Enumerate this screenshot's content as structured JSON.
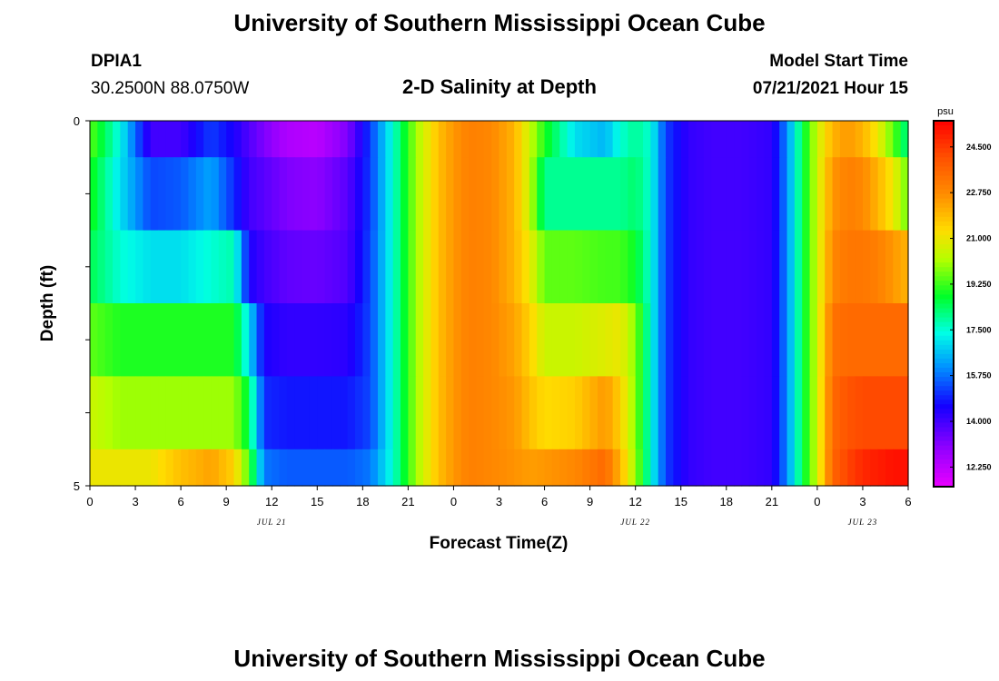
{
  "header": {
    "title": "University of Southern Mississippi Ocean Cube",
    "station_id": "DPIA1",
    "coordinates": "30.2500N  88.0750W",
    "chart_title": "2-D Salinity at Depth",
    "model_start_label": "Model Start Time",
    "model_start_value": "07/21/2021 Hour 15"
  },
  "footer": {
    "title": "University of Southern Mississippi Ocean Cube"
  },
  "chart_data": {
    "type": "heatmap",
    "title": "2-D Salinity at Depth",
    "xlabel": "Forecast Time(Z)",
    "ylabel": "Depth (ft)",
    "y_tick_labels": [
      "0",
      "5"
    ],
    "x_tick_labels": [
      "0",
      "3",
      "6",
      "9",
      "12",
      "15",
      "18",
      "21",
      "0",
      "3",
      "6",
      "9",
      "12",
      "15",
      "18",
      "21",
      "0",
      "3",
      "6"
    ],
    "date_labels": [
      {
        "label": "JUL 21",
        "hour_index": 12
      },
      {
        "label": "JUL 22",
        "hour_index": 36
      },
      {
        "label": "JUL 23",
        "hour_index": 51
      }
    ],
    "colorbar": {
      "unit": "psu",
      "min": 11.5,
      "max": 25.5,
      "tick_labels": [
        "12.250",
        "14.000",
        "15.750",
        "17.500",
        "19.250",
        "21.000",
        "22.750",
        "24.500"
      ]
    },
    "x_hours_range": [
      0,
      54
    ],
    "depth_range": [
      0,
      5
    ],
    "time_keys": [
      0,
      2,
      4,
      6,
      8,
      9.5,
      10.5,
      11.5,
      13,
      15,
      17,
      18.5,
      20,
      21.5,
      23,
      24,
      25,
      26.5,
      28,
      29,
      30,
      32,
      34,
      35,
      36,
      37,
      38,
      39.5,
      41,
      43,
      45,
      46,
      47,
      48,
      49,
      50,
      51,
      52,
      53,
      54
    ],
    "salinity_rows": [
      {
        "depth": "0-0.5",
        "values": [
          19.5,
          17.3,
          14.0,
          14.0,
          15.2,
          14.5,
          13.8,
          13.2,
          12.5,
          12.3,
          13.2,
          15.2,
          17.5,
          20.0,
          21.8,
          22.5,
          23.0,
          22.8,
          22.0,
          20.5,
          19.0,
          17.0,
          16.5,
          17.5,
          18.0,
          17.5,
          15.2,
          14.2,
          14.0,
          14.0,
          14.2,
          16.0,
          18.5,
          20.5,
          22.0,
          22.5,
          22.0,
          21.0,
          19.5,
          18.0
        ]
      },
      {
        "depth": "0.5-1.5",
        "values": [
          19.0,
          17.0,
          15.3,
          15.5,
          16.3,
          15.0,
          14.0,
          13.7,
          13.2,
          13.0,
          13.7,
          15.2,
          17.5,
          20.0,
          21.8,
          22.5,
          23.0,
          22.8,
          22.0,
          20.5,
          18.0,
          18.0,
          18.0,
          18.0,
          18.3,
          17.5,
          15.2,
          14.2,
          14.0,
          14.0,
          14.2,
          16.0,
          18.5,
          20.5,
          22.5,
          23.0,
          22.8,
          22.0,
          21.0,
          19.5
        ]
      },
      {
        "depth": "1.5-2.5",
        "values": [
          18.5,
          17.5,
          17.0,
          17.0,
          17.5,
          17.8,
          14.5,
          14.0,
          13.6,
          13.5,
          13.8,
          15.3,
          17.5,
          20.0,
          21.8,
          22.5,
          23.0,
          22.8,
          22.0,
          21.0,
          19.5,
          19.5,
          19.3,
          19.3,
          18.8,
          17.5,
          15.2,
          14.2,
          14.0,
          14.0,
          14.2,
          16.0,
          18.5,
          20.5,
          22.8,
          23.2,
          23.2,
          23.0,
          22.5,
          22.0
        ]
      },
      {
        "depth": "2.5-3.5",
        "values": [
          19.5,
          19.0,
          19.0,
          19.0,
          19.0,
          19.0,
          17.0,
          14.5,
          14.2,
          14.2,
          14.3,
          15.3,
          17.5,
          20.0,
          21.8,
          22.5,
          23.0,
          22.8,
          22.3,
          21.5,
          20.5,
          20.5,
          20.8,
          21.0,
          19.8,
          17.5,
          15.2,
          14.2,
          14.0,
          14.0,
          14.2,
          16.0,
          18.5,
          20.5,
          23.3,
          23.5,
          23.5,
          23.5,
          23.5,
          23.5
        ]
      },
      {
        "depth": "3.5-4.5",
        "values": [
          20.5,
          20.0,
          20.0,
          20.0,
          20.0,
          20.0,
          18.5,
          15.0,
          14.8,
          14.8,
          14.8,
          15.3,
          17.5,
          20.0,
          21.8,
          22.5,
          23.0,
          22.8,
          22.5,
          21.8,
          21.3,
          21.5,
          22.5,
          21.5,
          19.8,
          17.5,
          15.2,
          14.2,
          14.0,
          14.0,
          14.2,
          16.0,
          18.5,
          20.5,
          23.5,
          24.0,
          24.2,
          24.2,
          24.2,
          24.2
        ]
      },
      {
        "depth": "4.5-5",
        "values": [
          21.0,
          21.0,
          21.0,
          21.8,
          22.3,
          21.5,
          19.3,
          15.8,
          15.5,
          15.5,
          15.5,
          15.8,
          17.5,
          20.0,
          21.8,
          22.5,
          23.0,
          22.8,
          22.6,
          22.4,
          22.5,
          22.8,
          23.5,
          22.0,
          20.0,
          17.5,
          15.2,
          14.2,
          14.0,
          14.0,
          14.2,
          16.0,
          18.5,
          20.5,
          23.6,
          24.3,
          24.8,
          25.0,
          25.2,
          25.2
        ]
      }
    ]
  }
}
